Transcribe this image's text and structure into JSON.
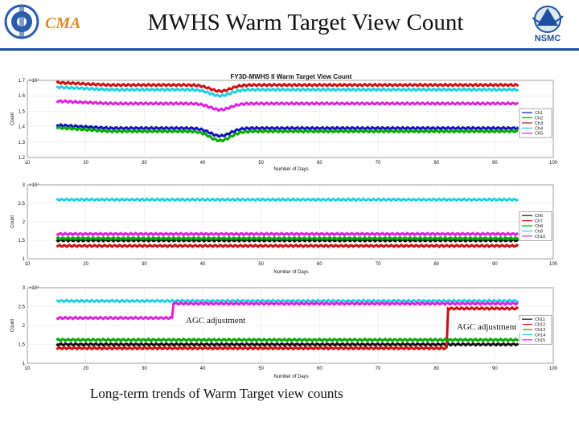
{
  "slide": {
    "title": "MWHS Warm Target View Count",
    "caption": "Long-term trends of Warm Target view counts",
    "left_logo_text": "CMA",
    "right_logo_text": "NSMC"
  },
  "chart_data": [
    {
      "type": "line",
      "title": "FY3D-MWHS II Warm Target View Count",
      "xlabel": "Number of Days",
      "ylabel": "Count",
      "y_exponent": "×10⁴",
      "xlim": [
        10,
        100
      ],
      "ylim": [
        1.2,
        1.7
      ],
      "xticks": [
        "10",
        "20",
        "30",
        "40",
        "50",
        "60",
        "70",
        "80",
        "90",
        "100"
      ],
      "yticks": [
        "1.2",
        "1.3",
        "1.4",
        "1.5",
        "1.6",
        "1.7"
      ],
      "legend_position": "right",
      "x_range": [
        15,
        94
      ],
      "dip_day": 43,
      "series": [
        {
          "name": "Ch1",
          "color": "#1010c0",
          "level": 1.39,
          "dip": 0.05
        },
        {
          "name": "Ch2",
          "color": "#00aa00",
          "level": 1.37,
          "dip": 0.06
        },
        {
          "name": "Ch3",
          "color": "#d01010",
          "level": 1.67,
          "dip": 0.04
        },
        {
          "name": "Ch4",
          "color": "#20d0e0",
          "level": 1.64,
          "dip": 0.04
        },
        {
          "name": "Ch5",
          "color": "#e020e0",
          "level": 1.55,
          "dip": 0.04
        }
      ]
    },
    {
      "type": "line",
      "title": "",
      "xlabel": "Number of Days",
      "ylabel": "Count",
      "y_exponent": "×10⁴",
      "xlim": [
        10,
        100
      ],
      "ylim": [
        1,
        3
      ],
      "xticks": [
        "10",
        "20",
        "30",
        "40",
        "50",
        "60",
        "70",
        "80",
        "90",
        "100"
      ],
      "yticks": [
        "1",
        "1.5",
        "2",
        "2.5",
        "3"
      ],
      "legend_position": "right",
      "x_range": [
        15,
        94
      ],
      "series": [
        {
          "name": "Ch6",
          "color": "#111111",
          "level": 1.5
        },
        {
          "name": "Ch7",
          "color": "#d01010",
          "level": 1.35
        },
        {
          "name": "Ch8",
          "color": "#00aa00",
          "level": 1.55
        },
        {
          "name": "Ch9",
          "color": "#20d0e0",
          "level": 2.6
        },
        {
          "name": "Ch10",
          "color": "#e020e0",
          "level": 1.67
        }
      ]
    },
    {
      "type": "line",
      "title": "",
      "xlabel": "Number of Days",
      "ylabel": "Count",
      "y_exponent": "×10⁴",
      "xlim": [
        10,
        100
      ],
      "ylim": [
        1,
        3
      ],
      "xticks": [
        "10",
        "20",
        "30",
        "40",
        "50",
        "60",
        "70",
        "80",
        "90",
        "100"
      ],
      "yticks": [
        "1",
        "1.5",
        "2",
        "2.5",
        "3"
      ],
      "legend_position": "right",
      "x_range": [
        15,
        94
      ],
      "series": [
        {
          "name": "Ch11",
          "color": "#111111",
          "level": 1.5
        },
        {
          "name": "Ch12",
          "color": "#d01010",
          "level": 1.4,
          "step_day": 82,
          "step_level": 2.45
        },
        {
          "name": "Ch13",
          "color": "#00aa00",
          "level": 1.62
        },
        {
          "name": "Ch14",
          "color": "#20d0e0",
          "level": 2.65
        },
        {
          "name": "Ch15",
          "color": "#e020e0",
          "level": 2.2,
          "step_day": 35,
          "step_level": 2.58
        }
      ],
      "annotations": [
        "AGC adjustment",
        "AGC adjustment"
      ]
    }
  ]
}
